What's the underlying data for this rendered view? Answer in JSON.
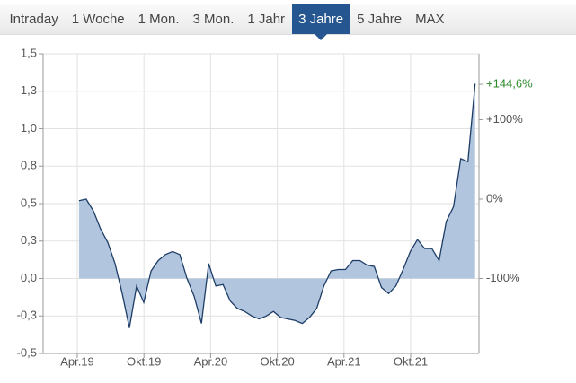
{
  "tabs": [
    "Intraday",
    "1 Woche",
    "1 Mon.",
    "3 Mon.",
    "1 Jahr",
    "3 Jahre",
    "5 Jahre",
    "MAX"
  ],
  "selected_tab": 5,
  "chart_data": {
    "type": "area",
    "x": [
      2019.263,
      2019.317,
      2019.371,
      2019.425,
      2019.479,
      2019.533,
      2019.587,
      2019.641,
      2019.695,
      2019.749,
      2019.803,
      2019.857,
      2019.911,
      2019.965,
      2020.019,
      2020.073,
      2020.127,
      2020.181,
      2020.235,
      2020.289,
      2020.343,
      2020.397,
      2020.451,
      2020.505,
      2020.559,
      2020.613,
      2020.667,
      2020.721,
      2020.775,
      2020.829,
      2020.883,
      2020.937,
      2020.991,
      2021.045,
      2021.099,
      2021.153,
      2021.207,
      2021.261,
      2021.315,
      2021.369,
      2021.423,
      2021.477,
      2021.531,
      2021.585,
      2021.639,
      2021.693,
      2021.747,
      2021.801,
      2021.855,
      2021.909,
      2021.963,
      2022.017,
      2022.071,
      2022.125,
      2022.179,
      2022.233
    ],
    "series": [
      {
        "color": "#1e3d66",
        "fill": "#a9c0da",
        "values": [
          0.52,
          0.53,
          0.45,
          0.33,
          0.24,
          0.1,
          -0.1,
          -0.33,
          -0.05,
          -0.16,
          0.05,
          0.12,
          0.16,
          0.18,
          0.16,
          0.0,
          -0.12,
          -0.3,
          0.1,
          -0.05,
          -0.04,
          -0.15,
          -0.2,
          -0.22,
          -0.25,
          -0.27,
          -0.25,
          -0.22,
          -0.26,
          -0.27,
          -0.28,
          -0.3,
          -0.26,
          -0.2,
          -0.05,
          0.05,
          0.06,
          0.06,
          0.12,
          0.12,
          0.09,
          0.08,
          -0.06,
          -0.1,
          -0.05,
          0.06,
          0.18,
          0.26,
          0.2,
          0.2,
          0.12,
          0.38,
          0.48,
          0.8,
          0.78,
          1.3
        ]
      }
    ],
    "xlim": [
      2018.994,
      2022.262
    ],
    "xticks": [
      {
        "value": 2019.25,
        "label": "Apr.19"
      },
      {
        "value": 2019.75,
        "label": "Okt.19"
      },
      {
        "value": 2020.25,
        "label": "Apr.20"
      },
      {
        "value": 2020.75,
        "label": "Okt.20"
      },
      {
        "value": 2021.25,
        "label": "Apr.21"
      },
      {
        "value": 2021.75,
        "label": "Okt.21"
      }
    ],
    "ylim": [
      -0.5,
      1.5
    ],
    "yticks": [
      {
        "value": 1.5,
        "label": "1,5"
      },
      {
        "value": 1.25,
        "label": "1,3"
      },
      {
        "value": 1.0,
        "label": "1,0"
      },
      {
        "value": 0.75,
        "label": "0,8"
      },
      {
        "value": 0.5,
        "label": "0,5"
      },
      {
        "value": 0.25,
        "label": "0,3"
      },
      {
        "value": 0.0,
        "label": "0,0"
      },
      {
        "value": -0.25,
        "label": "-0,3"
      },
      {
        "value": -0.5,
        "label": "-0,5"
      }
    ],
    "y2lim": [
      -194.4,
      183.1
    ],
    "y2ticks": [
      {
        "value": 100,
        "label": "+100%"
      },
      {
        "value": 0,
        "label": "0%"
      },
      {
        "value": -100,
        "label": "-100%"
      }
    ],
    "annotation": {
      "text": "+144,6%",
      "value": 144.6,
      "color": "#2a8a2a"
    },
    "grid": true
  }
}
